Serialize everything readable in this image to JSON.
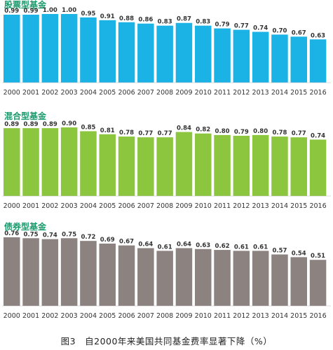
{
  "caption": "图3　自2000年来美国共同基金费率显著下降（%）",
  "chart_data": [
    {
      "type": "bar",
      "title": "股票型基金",
      "color": "#1bb3e6",
      "categories": [
        "2000",
        "2001",
        "2002",
        "2003",
        "2004",
        "2005",
        "2006",
        "2007",
        "2008",
        "2009",
        "2010",
        "2011",
        "2012",
        "2013",
        "2014",
        "2015",
        "2016"
      ],
      "values": [
        0.99,
        0.99,
        1.0,
        1.0,
        0.95,
        0.91,
        0.88,
        0.86,
        0.83,
        0.87,
        0.83,
        0.79,
        0.77,
        0.74,
        0.7,
        0.67,
        0.63
      ],
      "labels": [
        "0.99",
        "0.99",
        "1.00",
        "1.00",
        "0.95",
        "0.91",
        "0.88",
        "0.86",
        "0.83",
        "0.87",
        "0.83",
        "0.79",
        "0.77",
        "0.74",
        "0.70",
        "0.67",
        "0.63"
      ],
      "ylim": [
        0,
        1.0
      ],
      "grid": false
    },
    {
      "type": "bar",
      "title": "混合型基金",
      "color": "#8cc63f",
      "categories": [
        "2000",
        "2001",
        "2002",
        "2003",
        "2004",
        "2005",
        "2006",
        "2007",
        "2008",
        "2009",
        "2010",
        "2011",
        "2012",
        "2013",
        "2014",
        "2015",
        "2016"
      ],
      "values": [
        0.89,
        0.89,
        0.89,
        0.9,
        0.85,
        0.81,
        0.78,
        0.77,
        0.77,
        0.84,
        0.82,
        0.8,
        0.79,
        0.8,
        0.78,
        0.77,
        0.74
      ],
      "labels": [
        "0.89",
        "0.89",
        "0.89",
        "0.90",
        "0.85",
        "0.81",
        "0.78",
        "0.77",
        "0.77",
        "0.84",
        "0.82",
        "0.80",
        "0.79",
        "0.80",
        "0.78",
        "0.77",
        "0.74"
      ],
      "ylim": [
        0,
        0.9
      ],
      "grid": false
    },
    {
      "type": "bar",
      "title": "债券型基金",
      "color": "#8c8280",
      "categories": [
        "2000",
        "2001",
        "2002",
        "2003",
        "2004",
        "2005",
        "2006",
        "2007",
        "2008",
        "2009",
        "2010",
        "2011",
        "2012",
        "2013",
        "2014",
        "2015",
        "2016"
      ],
      "values": [
        0.76,
        0.75,
        0.74,
        0.75,
        0.72,
        0.69,
        0.67,
        0.64,
        0.61,
        0.64,
        0.63,
        0.62,
        0.61,
        0.61,
        0.57,
        0.54,
        0.51
      ],
      "labels": [
        "0.76",
        "0.75",
        "0.74",
        "0.75",
        "0.72",
        "0.69",
        "0.67",
        "0.64",
        "0.61",
        "0.64",
        "0.63",
        "0.62",
        "0.61",
        "0.61",
        "0.57",
        "0.54",
        "0.51"
      ],
      "ylim": [
        0,
        0.76
      ],
      "grid": false
    }
  ]
}
